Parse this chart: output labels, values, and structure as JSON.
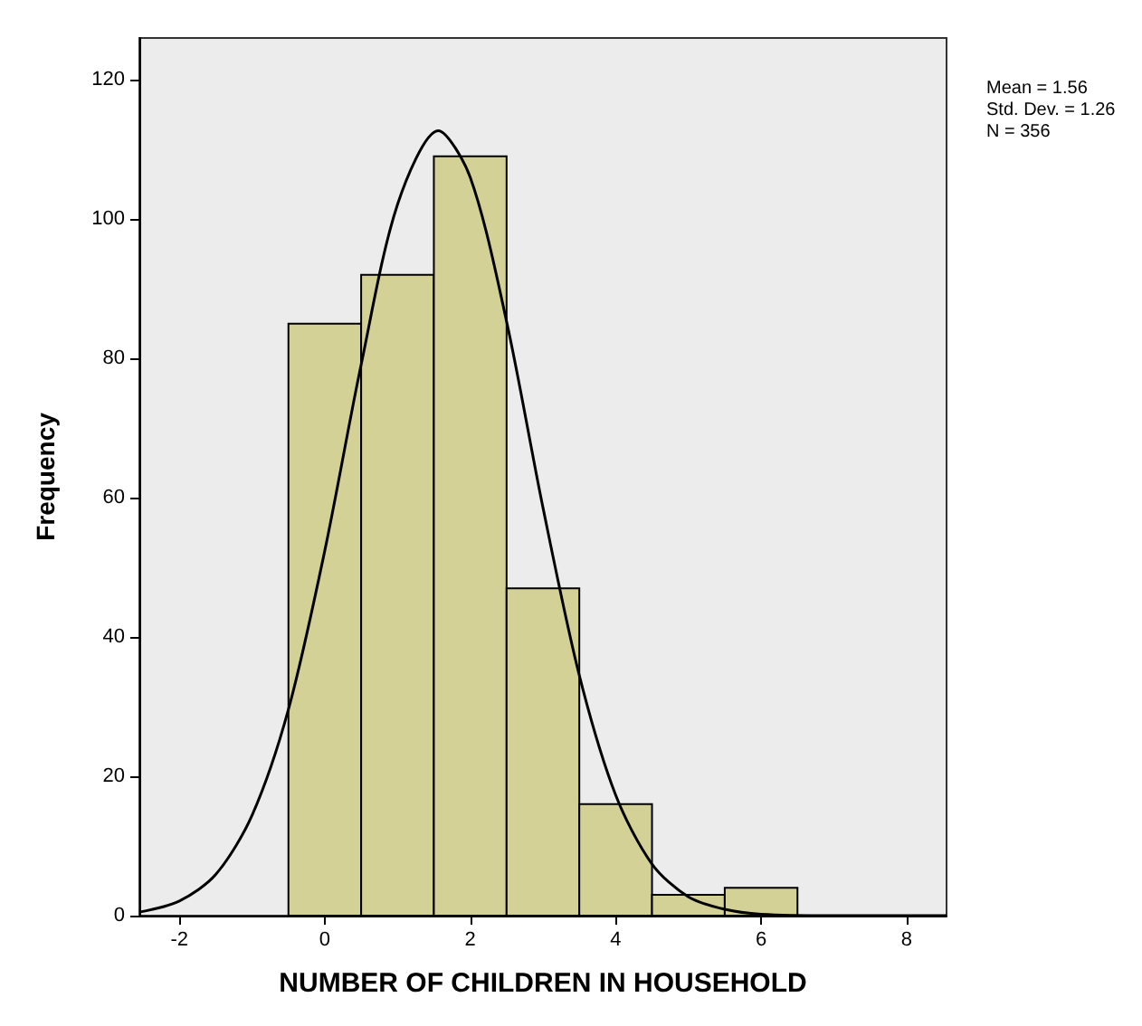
{
  "chart_data": {
    "type": "histogram",
    "xlabel": "NUMBER OF CHILDREN IN HOUSEHOLD",
    "ylabel": "Frequency",
    "bins": [
      -0.5,
      0.5,
      1.5,
      2.5,
      3.5,
      4.5,
      5.5,
      6.5
    ],
    "values": [
      85,
      92,
      109,
      47,
      16,
      3,
      4
    ],
    "color": "#d4d196",
    "series": [
      {
        "type": "line",
        "color": "#000000",
        "x": [
          -2.55,
          -2,
          -1.5,
          -1,
          -0.5,
          0,
          0.5,
          1,
          1.56,
          2,
          2.5,
          3,
          3.5,
          4,
          4.5,
          5,
          5.5,
          6,
          7,
          8.55
        ],
        "values": [
          0.5,
          2.1,
          5.9,
          14.4,
          29.6,
          52.4,
          79.1,
          102.1,
          112.7,
          106,
          85.3,
          58.6,
          34.5,
          17.3,
          7.4,
          2.7,
          0.9,
          0.2,
          0,
          0
        ]
      }
    ],
    "xlim": [
      -2.55,
      8.55
    ],
    "ylim": [
      0,
      126
    ],
    "xticks": [
      -2,
      0,
      2,
      4,
      6,
      8
    ],
    "yticks": [
      0,
      20,
      40,
      60,
      80,
      100,
      120
    ],
    "annotations": [
      "Mean = 1.56",
      "Std. Dev. = 1.26",
      "N = 356"
    ],
    "grid": false,
    "marker": "none",
    "line_style": "solid"
  }
}
